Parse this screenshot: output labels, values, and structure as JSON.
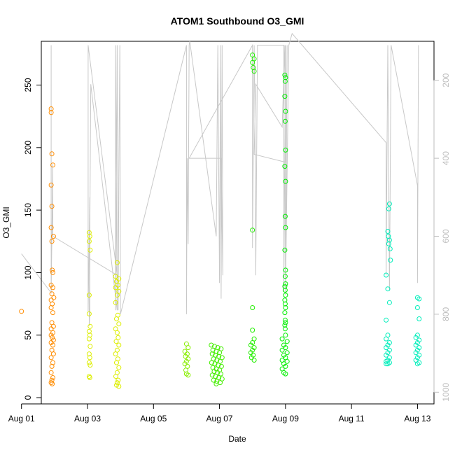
{
  "chart_data": {
    "type": "scatter",
    "title": "ATOM1 Southbound O3_GMI",
    "xlabel": "Date",
    "ylabel": "O3_GMI",
    "xlim_days": [
      0.6,
      12.5
    ],
    "ylim": [
      -5,
      285
    ],
    "x_ticks": [
      {
        "value": 0,
        "label": "Aug 01"
      },
      {
        "value": 2,
        "label": "Aug 03"
      },
      {
        "value": 4,
        "label": "Aug 05"
      },
      {
        "value": 6,
        "label": "Aug 07"
      },
      {
        "value": 8,
        "label": "Aug 09"
      },
      {
        "value": 10,
        "label": "Aug 11"
      },
      {
        "value": 12,
        "label": "Aug 13"
      }
    ],
    "y_ticks": [
      0,
      50,
      100,
      150,
      200,
      250
    ],
    "right_axis": {
      "label": "",
      "ticks": [
        200,
        400,
        600,
        800,
        1000
      ],
      "range_top_to_bottom": [
        100,
        1030
      ],
      "color": "#bebebe"
    },
    "series": [
      {
        "color": "#ff8c00",
        "points": [
          [
            0.0,
            69
          ],
          [
            0.9,
            231
          ],
          [
            0.9,
            228
          ],
          [
            0.92,
            195
          ],
          [
            0.95,
            186
          ],
          [
            0.9,
            170
          ],
          [
            0.92,
            153
          ],
          [
            0.97,
            129
          ],
          [
            0.9,
            136
          ],
          [
            0.92,
            125
          ],
          [
            0.93,
            102
          ],
          [
            0.95,
            100
          ],
          [
            0.9,
            90
          ],
          [
            0.95,
            88
          ],
          [
            0.92,
            83
          ],
          [
            0.98,
            80
          ],
          [
            0.9,
            78
          ],
          [
            0.93,
            75
          ],
          [
            0.9,
            72
          ],
          [
            0.95,
            68
          ],
          [
            0.92,
            60
          ],
          [
            0.97,
            57
          ],
          [
            0.9,
            55
          ],
          [
            0.95,
            52
          ],
          [
            0.9,
            50
          ],
          [
            0.93,
            48
          ],
          [
            0.97,
            46
          ],
          [
            0.9,
            44
          ],
          [
            0.95,
            42
          ],
          [
            0.92,
            38
          ],
          [
            0.97,
            35
          ],
          [
            0.9,
            32
          ],
          [
            0.95,
            28
          ],
          [
            0.92,
            25
          ],
          [
            0.9,
            20
          ],
          [
            0.95,
            16
          ],
          [
            0.92,
            14
          ],
          [
            0.9,
            12
          ],
          [
            0.93,
            11
          ]
        ]
      },
      {
        "color": "#ddee00",
        "points": [
          [
            2.05,
            132
          ],
          [
            2.07,
            129
          ],
          [
            2.05,
            125
          ],
          [
            2.08,
            118
          ],
          [
            2.05,
            82
          ],
          [
            2.05,
            67
          ],
          [
            2.08,
            57
          ],
          [
            2.05,
            53
          ],
          [
            2.07,
            50
          ],
          [
            2.05,
            47
          ],
          [
            2.08,
            41
          ],
          [
            2.05,
            35
          ],
          [
            2.07,
            32
          ],
          [
            2.05,
            28
          ],
          [
            2.08,
            26
          ],
          [
            2.05,
            17
          ],
          [
            2.07,
            16
          ],
          [
            2.9,
            108
          ],
          [
            2.85,
            97
          ],
          [
            2.95,
            95
          ],
          [
            2.88,
            93
          ],
          [
            2.92,
            90
          ],
          [
            2.85,
            88
          ],
          [
            2.95,
            85
          ],
          [
            2.9,
            82
          ],
          [
            2.85,
            76
          ],
          [
            2.92,
            66
          ],
          [
            2.88,
            63
          ],
          [
            2.95,
            59
          ],
          [
            2.85,
            55
          ],
          [
            2.9,
            52
          ],
          [
            2.93,
            48
          ],
          [
            2.87,
            45
          ],
          [
            2.95,
            42
          ],
          [
            2.9,
            38
          ],
          [
            2.85,
            35
          ],
          [
            2.92,
            31
          ],
          [
            2.88,
            28
          ],
          [
            2.95,
            24
          ],
          [
            2.9,
            20
          ],
          [
            2.86,
            17
          ],
          [
            2.93,
            14
          ],
          [
            2.9,
            12
          ],
          [
            2.88,
            10
          ],
          [
            2.95,
            9
          ]
        ]
      },
      {
        "color": "#88ee00",
        "points": [
          [
            5.0,
            43
          ],
          [
            5.05,
            40
          ],
          [
            4.95,
            37
          ],
          [
            5.02,
            35
          ],
          [
            4.97,
            33
          ],
          [
            5.05,
            31
          ],
          [
            5.0,
            29
          ],
          [
            4.95,
            27
          ],
          [
            5.03,
            25
          ],
          [
            4.98,
            22
          ],
          [
            5.0,
            19
          ],
          [
            5.05,
            18
          ]
        ]
      },
      {
        "color": "#44ee00",
        "points": [
          [
            5.75,
            42
          ],
          [
            5.85,
            41
          ],
          [
            5.95,
            40
          ],
          [
            6.05,
            39
          ],
          [
            5.8,
            38
          ],
          [
            5.9,
            37
          ],
          [
            6.0,
            36
          ],
          [
            5.78,
            35
          ],
          [
            5.88,
            34
          ],
          [
            5.98,
            33
          ],
          [
            6.08,
            32
          ],
          [
            5.82,
            31
          ],
          [
            5.92,
            30
          ],
          [
            6.02,
            29
          ],
          [
            5.76,
            28
          ],
          [
            5.86,
            27
          ],
          [
            5.96,
            26
          ],
          [
            6.06,
            25
          ],
          [
            5.8,
            24
          ],
          [
            5.9,
            23
          ],
          [
            6.0,
            22
          ],
          [
            5.84,
            21
          ],
          [
            5.94,
            20
          ],
          [
            6.04,
            19
          ],
          [
            5.78,
            18
          ],
          [
            5.88,
            17
          ],
          [
            5.98,
            16
          ],
          [
            6.08,
            15
          ],
          [
            5.82,
            14
          ],
          [
            5.92,
            13
          ],
          [
            6.02,
            12
          ],
          [
            5.9,
            11
          ]
        ]
      },
      {
        "color": "#22ee00",
        "points": [
          [
            7.0,
            274
          ],
          [
            7.05,
            271
          ],
          [
            7.0,
            268
          ],
          [
            7.02,
            264
          ],
          [
            7.05,
            261
          ],
          [
            7.0,
            134
          ],
          [
            7.0,
            72
          ],
          [
            7.0,
            54
          ],
          [
            7.05,
            47
          ],
          [
            7.0,
            44
          ],
          [
            6.95,
            42
          ],
          [
            7.05,
            40
          ],
          [
            7.0,
            38
          ],
          [
            6.95,
            36
          ],
          [
            7.02,
            34
          ],
          [
            6.97,
            32
          ],
          [
            7.05,
            30
          ]
        ]
      },
      {
        "color": "#00ee00",
        "points": [
          [
            7.98,
            258
          ],
          [
            8.0,
            256
          ],
          [
            7.99,
            253
          ],
          [
            7.98,
            241
          ],
          [
            8.0,
            229
          ],
          [
            7.99,
            221
          ],
          [
            8.0,
            198
          ],
          [
            7.98,
            185
          ],
          [
            8.0,
            173
          ],
          [
            7.99,
            145
          ],
          [
            8.0,
            136
          ],
          [
            7.98,
            118
          ],
          [
            8.0,
            102
          ],
          [
            7.99,
            97
          ],
          [
            8.0,
            91
          ],
          [
            7.98,
            89
          ],
          [
            7.99,
            86
          ],
          [
            8.0,
            82
          ],
          [
            7.98,
            78
          ],
          [
            7.99,
            75
          ],
          [
            8.0,
            72
          ],
          [
            7.98,
            68
          ],
          [
            7.99,
            62
          ],
          [
            8.0,
            60
          ],
          [
            7.98,
            58
          ],
          [
            7.99,
            55
          ],
          [
            8.0,
            50
          ],
          [
            7.9,
            47
          ],
          [
            8.05,
            45
          ],
          [
            7.95,
            42
          ],
          [
            8.0,
            40
          ],
          [
            7.9,
            38
          ],
          [
            8.05,
            36
          ],
          [
            7.95,
            34
          ],
          [
            8.0,
            32
          ],
          [
            7.9,
            30
          ],
          [
            8.05,
            29
          ],
          [
            7.95,
            27
          ],
          [
            8.0,
            25
          ],
          [
            7.9,
            23
          ],
          [
            7.95,
            20
          ],
          [
            8.0,
            19
          ]
        ]
      },
      {
        "color": "#00eebb",
        "points": [
          [
            11.15,
            155
          ],
          [
            11.13,
            151
          ],
          [
            11.1,
            133
          ],
          [
            11.12,
            129
          ],
          [
            11.15,
            126
          ],
          [
            11.13,
            123
          ],
          [
            11.17,
            119
          ],
          [
            11.18,
            110
          ],
          [
            11.05,
            98
          ],
          [
            11.1,
            87
          ],
          [
            11.15,
            76
          ],
          [
            11.05,
            62
          ],
          [
            11.1,
            50
          ],
          [
            11.05,
            47
          ],
          [
            11.15,
            44
          ],
          [
            11.1,
            42
          ],
          [
            11.05,
            40
          ],
          [
            11.15,
            38
          ],
          [
            11.1,
            36
          ],
          [
            11.05,
            34
          ],
          [
            11.15,
            32
          ],
          [
            11.1,
            30
          ],
          [
            11.05,
            29
          ],
          [
            11.15,
            28
          ],
          [
            11.1,
            27
          ],
          [
            11.05,
            27
          ],
          [
            12.0,
            80
          ],
          [
            12.05,
            79
          ],
          [
            12.0,
            72
          ],
          [
            12.05,
            63
          ],
          [
            12.0,
            50
          ],
          [
            11.95,
            48
          ],
          [
            12.05,
            46
          ],
          [
            12.0,
            44
          ],
          [
            11.95,
            42
          ],
          [
            12.05,
            40
          ],
          [
            12.0,
            38
          ],
          [
            11.95,
            36
          ],
          [
            12.05,
            34
          ],
          [
            12.0,
            32
          ],
          [
            11.95,
            30
          ],
          [
            12.05,
            28
          ],
          [
            12.0,
            27
          ]
        ]
      }
    ],
    "altitude_trace": {
      "color": "#c8c8c8",
      "note_units": "right axis",
      "points": [
        [
          0.0,
          645
        ],
        [
          0.9,
          745
        ],
        [
          0.9,
          110
        ],
        [
          0.9,
          740
        ],
        [
          0.95,
          415
        ],
        [
          0.95,
          600
        ],
        [
          2.9,
          700
        ],
        [
          2.02,
          110
        ],
        [
          2.02,
          795
        ],
        [
          2.07,
          500
        ],
        [
          2.07,
          800
        ],
        [
          2.05,
          830
        ],
        [
          2.1,
          210
        ],
        [
          2.9,
          790
        ],
        [
          2.85,
          110
        ],
        [
          2.85,
          790
        ],
        [
          2.9,
          110
        ],
        [
          2.93,
          790
        ],
        [
          2.95,
          440
        ],
        [
          2.98,
          110
        ],
        [
          3.0,
          800
        ],
        [
          5.0,
          110
        ],
        [
          5.0,
          800
        ],
        [
          5.02,
          400
        ],
        [
          5.05,
          620
        ],
        [
          5.08,
          110
        ],
        [
          5.1,
          100
        ],
        [
          5.9,
          600
        ],
        [
          5.95,
          110
        ],
        [
          6.0,
          720
        ],
        [
          6.03,
          110
        ],
        [
          6.05,
          760
        ],
        [
          6.08,
          110
        ],
        [
          6.1,
          700
        ],
        [
          6.05,
          400
        ],
        [
          5.08,
          400
        ],
        [
          7.0,
          110
        ],
        [
          7.0,
          630
        ],
        [
          7.05,
          110
        ],
        [
          7.07,
          250
        ],
        [
          7.1,
          700
        ],
        [
          7.15,
          110
        ],
        [
          7.95,
          110
        ],
        [
          7.95,
          740
        ],
        [
          8.0,
          110
        ],
        [
          8.0,
          410
        ],
        [
          7.05,
          390
        ],
        [
          7.1,
          210
        ],
        [
          7.9,
          320
        ],
        [
          7.98,
          110
        ],
        [
          8.0,
          750
        ],
        [
          8.05,
          110
        ],
        [
          8.0,
          740
        ],
        [
          8.1,
          110
        ],
        [
          8.2,
          80
        ],
        [
          11.05,
          360
        ],
        [
          11.05,
          700
        ],
        [
          11.1,
          110
        ],
        [
          11.15,
          740
        ],
        [
          11.2,
          110
        ],
        [
          12.0,
          470
        ],
        [
          12.0,
          720
        ],
        [
          12.03,
          110
        ]
      ]
    }
  }
}
